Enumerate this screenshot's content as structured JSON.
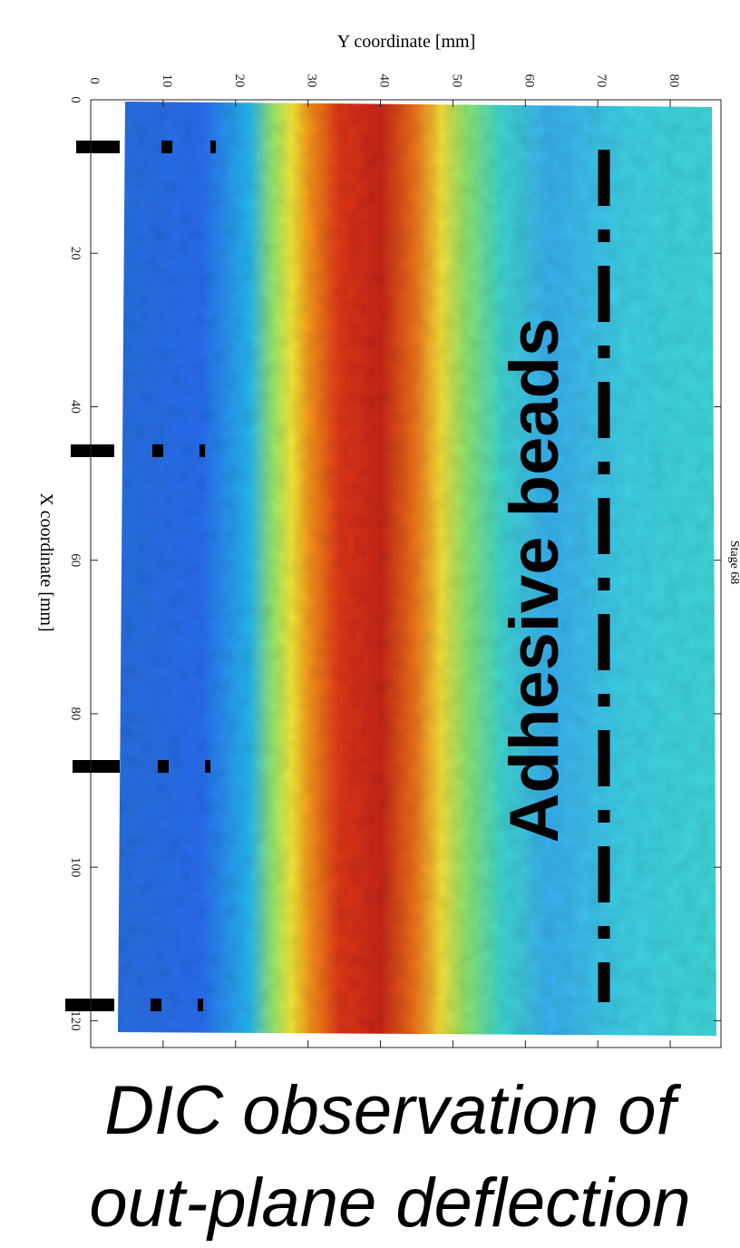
{
  "chart_data": {
    "type": "contour",
    "xlabel": "Y coordinate [mm]",
    "ylabel": "X coordinate [mm]",
    "xlim": [
      0,
      87
    ],
    "xticks": [
      0,
      10,
      20,
      30,
      40,
      50,
      60,
      70,
      80
    ],
    "ylim": [
      0,
      123.5
    ],
    "yticks": [
      0,
      20,
      40,
      60,
      80,
      100,
      120
    ],
    "stage_label": "Stage 68",
    "annotation": "Adhesive beads",
    "caption": [
      "DIC observation of",
      "out-plane deflection"
    ]
  }
}
